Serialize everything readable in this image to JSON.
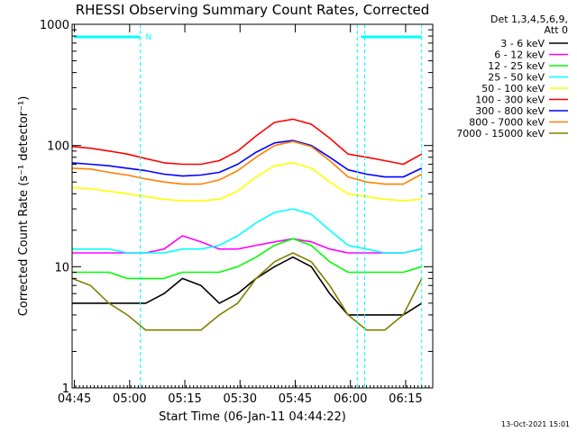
{
  "chart_data": {
    "type": "line",
    "title": "RHESSI Observing Summary Count Rates, Corrected",
    "xlabel": "Start Time (06-Jan-11 04:44:22)",
    "ylabel": "Corrected Count Rate (s⁻¹ detector⁻¹)",
    "yscale": "log",
    "ylim": [
      1,
      1000
    ],
    "xlim_minutes": [
      0,
      98
    ],
    "xticks": [
      {
        "label": "04:45",
        "minute": 0.63
      },
      {
        "label": "05:00",
        "minute": 15.63
      },
      {
        "label": "05:15",
        "minute": 30.63
      },
      {
        "label": "05:30",
        "minute": 45.63
      },
      {
        "label": "05:45",
        "minute": 60.63
      },
      {
        "label": "06:00",
        "minute": 75.63
      },
      {
        "label": "06:15",
        "minute": 90.63
      }
    ],
    "yticks": [
      {
        "label": "1",
        "value": 1
      },
      {
        "label": "10",
        "value": 10
      },
      {
        "label": "100",
        "value": 100
      },
      {
        "label": "1000",
        "value": 1000
      }
    ],
    "legend_header": [
      "Det 1,3,4,5,6,9,",
      "Att 0"
    ],
    "legend_position": "top-right",
    "footer_stamp": "13-Oct-2021 15:01",
    "flags": [
      {
        "label": "N",
        "start_minute": 0.5,
        "end_minute": 18.5,
        "color": "#00ffff"
      },
      {
        "label": "",
        "start_minute": 78.5,
        "end_minute": 95.0,
        "color": "#00ffff"
      }
    ],
    "markers_minute": [
      18.5,
      77.5,
      79.5,
      95.0
    ],
    "x": [
      0,
      5,
      10,
      15,
      20,
      25,
      30,
      35,
      40,
      45,
      50,
      55,
      60,
      65,
      70,
      75,
      80,
      85,
      90,
      95
    ],
    "series": [
      {
        "name": "3 - 6 keV",
        "color": "#000000",
        "values": [
          5,
          5,
          5,
          5,
          5,
          6,
          8,
          7,
          5,
          6,
          8,
          10,
          12,
          10,
          6,
          4,
          4,
          4,
          4,
          5
        ]
      },
      {
        "name": "6 - 12 keV",
        "color": "#ff00ff",
        "values": [
          13,
          13,
          13,
          13,
          13,
          14,
          18,
          16,
          14,
          14,
          15,
          16,
          17,
          16,
          14,
          13,
          13,
          13,
          13,
          14
        ]
      },
      {
        "name": "12 - 25 keV",
        "color": "#00ff00",
        "values": [
          9,
          9,
          9,
          8,
          8,
          8,
          9,
          9,
          9,
          10,
          12,
          15,
          17,
          15,
          11,
          9,
          9,
          9,
          9,
          10
        ]
      },
      {
        "name": "25 - 50 keV",
        "color": "#00ffff",
        "values": [
          14,
          14,
          14,
          13,
          13,
          13,
          14,
          14,
          15,
          18,
          23,
          28,
          30,
          27,
          20,
          15,
          14,
          13,
          13,
          14
        ]
      },
      {
        "name": "50 - 100 keV",
        "color": "#ffff00",
        "values": [
          45,
          44,
          42,
          40,
          38,
          36,
          35,
          35,
          36,
          42,
          55,
          68,
          72,
          65,
          50,
          40,
          38,
          36,
          35,
          36
        ]
      },
      {
        "name": "100 - 300 keV",
        "color": "#ff0000",
        "values": [
          98,
          95,
          90,
          85,
          78,
          72,
          70,
          70,
          75,
          90,
          120,
          155,
          165,
          150,
          115,
          85,
          80,
          75,
          70,
          85
        ]
      },
      {
        "name": "300 - 800 keV",
        "color": "#0000ff",
        "values": [
          72,
          70,
          68,
          65,
          62,
          58,
          56,
          57,
          60,
          70,
          88,
          105,
          110,
          100,
          80,
          63,
          58,
          55,
          55,
          65
        ]
      },
      {
        "name": "800 - 7000 keV",
        "color": "#ff8000",
        "values": [
          65,
          64,
          60,
          57,
          53,
          50,
          48,
          48,
          52,
          62,
          80,
          100,
          108,
          98,
          75,
          55,
          50,
          48,
          48,
          58
        ]
      },
      {
        "name": "7000 - 15000 keV",
        "color": "#808000",
        "values": [
          8,
          7,
          5,
          4,
          3,
          3,
          3,
          3,
          4,
          5,
          8,
          11,
          13,
          11,
          7,
          4,
          3,
          3,
          4,
          8
        ]
      }
    ]
  }
}
